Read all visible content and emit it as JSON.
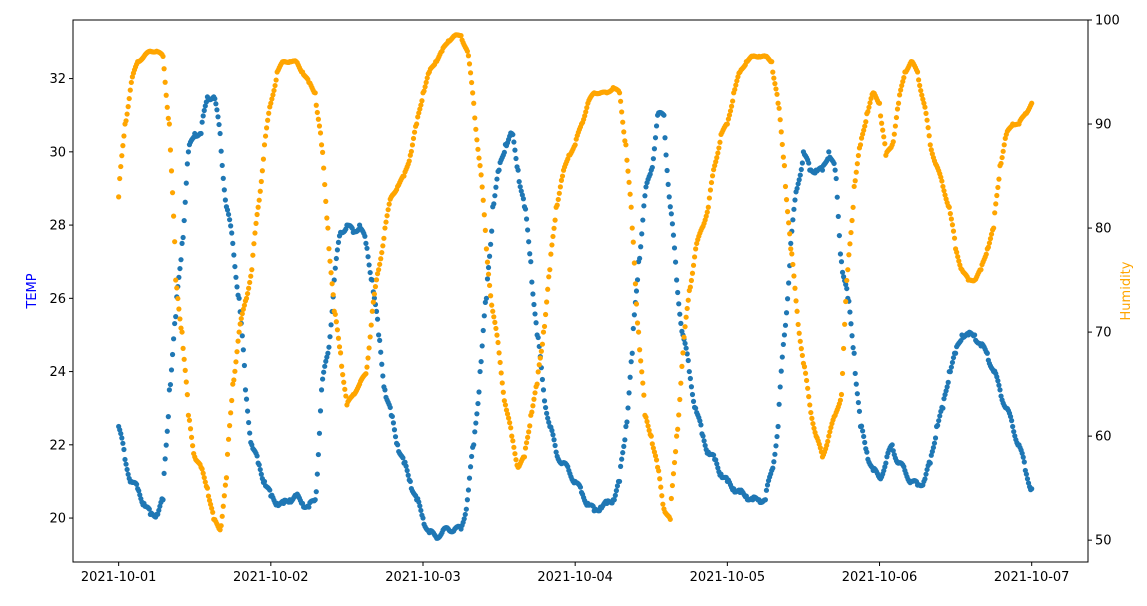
{
  "chart_data": {
    "type": "scatter",
    "title": "",
    "xlabel": "",
    "x_start": "2021-10-01 00:00",
    "x_interval_hours": 1,
    "x_ticks": [
      "2021-10-01",
      "2021-10-02",
      "2021-10-03",
      "2021-10-04",
      "2021-10-05",
      "2021-10-06",
      "2021-10-07"
    ],
    "xlim_days": [
      -0.3,
      6.37
    ],
    "left_axis": {
      "label": "TEMP",
      "color": "#0000ff",
      "ylim": [
        18.8,
        33.6
      ],
      "ticks": [
        20,
        22,
        24,
        26,
        28,
        30,
        32
      ]
    },
    "right_axis": {
      "label": "Humidity",
      "color": "#ffa500",
      "ylim": [
        47.9,
        100
      ],
      "ticks": [
        50,
        60,
        70,
        80,
        90,
        100
      ]
    },
    "series": [
      {
        "name": "TEMP",
        "axis": "left",
        "color": "#1f77b4",
        "values": [
          22.5,
          21.6,
          21.0,
          20.8,
          20.4,
          20.1,
          20.1,
          20.5,
          23.5,
          25.5,
          27.5,
          30.0,
          30.5,
          30.5,
          31.5,
          31.5,
          30.5,
          28.5,
          27.5,
          26.0,
          23.5,
          22.0,
          21.5,
          21.0,
          20.6,
          20.4,
          20.4,
          20.5,
          20.6,
          20.4,
          20.3,
          20.5,
          23.5,
          24.5,
          26.5,
          27.8,
          28.0,
          27.8,
          28.0,
          27.5,
          26.5,
          25.0,
          23.5,
          22.8,
          22.0,
          21.5,
          21.0,
          20.5,
          20.0,
          19.6,
          19.5,
          19.6,
          19.7,
          19.7,
          19.7,
          20.5,
          22.0,
          24.0,
          26.0,
          28.5,
          29.5,
          30.2,
          30.5,
          29.5,
          28.5,
          27.0,
          25.0,
          23.5,
          22.5,
          21.8,
          21.5,
          21.3,
          21.0,
          20.7,
          20.4,
          20.2,
          20.3,
          20.4,
          20.5,
          21.0,
          22.5,
          24.5,
          27.0,
          28.8,
          29.5,
          31.0,
          31.0,
          28.5,
          26.5,
          25.0,
          24.0,
          23.0,
          22.3,
          21.8,
          21.6,
          21.2,
          21.0,
          20.8,
          20.7,
          20.6,
          20.5,
          20.5,
          20.5,
          21.3,
          22.5,
          25.0,
          27.5,
          29.0,
          30.0,
          29.5,
          29.5,
          29.5,
          30.0,
          29.5,
          27.0,
          26.0,
          24.5,
          22.5,
          21.8,
          21.3,
          21.1,
          21.5,
          22.0,
          21.5,
          21.3,
          21.0,
          20.9,
          21.0,
          21.5,
          22.5,
          23.0,
          24.0,
          24.5,
          25.0,
          25.0,
          25.0,
          24.7,
          24.5,
          24.0,
          23.5,
          23.0,
          22.5,
          22.0,
          21.3,
          20.8
        ]
      },
      {
        "name": "Humidity",
        "axis": "right",
        "color": "#ffa500",
        "values": [
          83,
          90,
          94,
          96,
          96.5,
          97,
          97,
          96.5,
          90,
          75,
          70,
          62,
          58,
          57,
          55,
          52,
          51,
          56,
          65,
          70,
          73,
          76,
          82,
          88,
          92,
          95,
          96,
          96,
          96,
          95,
          94,
          93,
          88,
          80,
          72,
          68,
          63,
          64,
          65,
          66,
          72,
          76,
          80,
          83,
          84,
          85,
          87,
          90,
          93,
          95,
          96,
          97,
          98,
          98.5,
          98.5,
          97,
          92,
          86,
          78,
          72,
          68,
          63,
          60,
          57,
          58,
          62,
          65,
          70,
          76,
          82,
          85,
          87,
          88,
          90,
          92,
          93,
          93,
          93,
          93.5,
          93,
          88,
          80,
          70,
          62,
          60,
          57,
          53,
          52,
          60,
          68,
          74,
          78,
          80,
          82,
          86,
          89,
          90,
          93,
          95,
          96,
          96.5,
          96.5,
          96.5,
          96,
          92,
          86,
          78,
          72,
          67,
          63,
          60,
          58,
          60,
          62,
          64,
          76,
          84,
          88,
          91,
          93,
          92,
          87,
          88,
          92,
          95,
          96,
          95,
          92,
          88,
          86,
          84,
          82,
          78,
          76,
          75,
          75,
          76,
          78,
          80,
          86,
          89,
          90,
          90,
          91,
          92
        ]
      }
    ]
  }
}
